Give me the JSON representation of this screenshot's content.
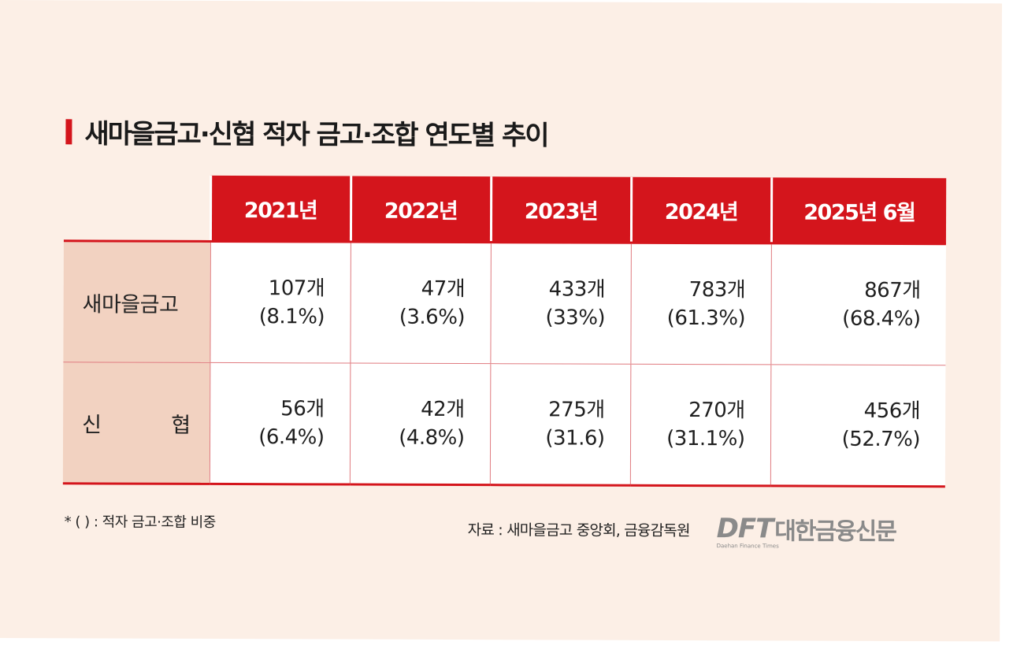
{
  "title": "새마을금고·신협 적자 금고·조합 연도별 추이",
  "colors": {
    "accent": "#d4151c",
    "background": "#fcefe6",
    "label_bg": "#f2d2c1"
  },
  "chart_data": {
    "type": "table",
    "title": "새마을금고·신협 적자 금고·조합 연도별 추이",
    "columns": [
      "2021년",
      "2022년",
      "2023년",
      "2024년",
      "2025년 6월"
    ],
    "rows": [
      {
        "label": "새마을금고",
        "cells": [
          {
            "count": "107개",
            "pct": "(8.1%)"
          },
          {
            "count": "47개",
            "pct": "(3.6%)"
          },
          {
            "count": "433개",
            "pct": "(33%)"
          },
          {
            "count": "783개",
            "pct": "(61.3%)"
          },
          {
            "count": "867개",
            "pct": "(68.4%)"
          }
        ]
      },
      {
        "label": "신협",
        "label_chars": [
          "신",
          "협"
        ],
        "cells": [
          {
            "count": "56개",
            "pct": "(6.4%)"
          },
          {
            "count": "42개",
            "pct": "(4.8%)"
          },
          {
            "count": "275개",
            "pct": "(31.6)"
          },
          {
            "count": "270개",
            "pct": "(31.1%)"
          },
          {
            "count": "456개",
            "pct": "(52.7%)"
          }
        ]
      }
    ]
  },
  "footnote": "* (     ) : 적자 금고·조합 비중",
  "source": "자료 : 새마을금고 중앙회, 금융감독원",
  "logo": {
    "mark": "DFT",
    "name": "대한금융신문",
    "subtitle": "Daehan Finance Times"
  }
}
